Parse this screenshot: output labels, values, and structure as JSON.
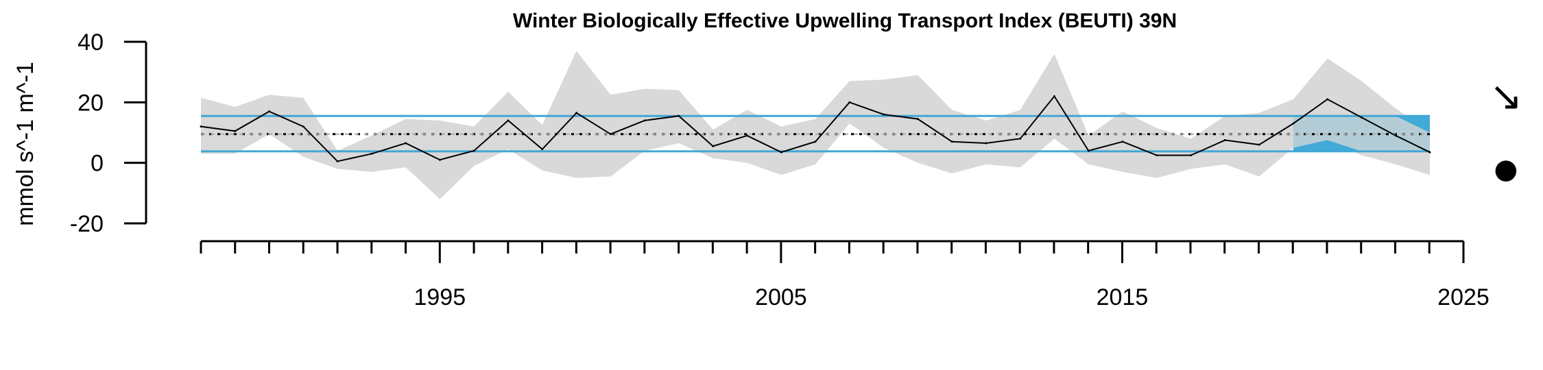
{
  "chart_data": {
    "type": "line",
    "title": "Winter Biologically Effective Upwelling Transport Index (BEUTI) 39N",
    "xlabel": "",
    "ylabel": "mmol s^-1 m^-1",
    "xlim": [
      1988,
      2025
    ],
    "ylim": [
      -20,
      40
    ],
    "x_ticks": [
      1995,
      2005,
      2015,
      2025
    ],
    "y_ticks": [
      -20,
      0,
      20,
      40
    ],
    "grid": false,
    "years": [
      1988,
      1989,
      1990,
      1991,
      1992,
      1993,
      1994,
      1995,
      1996,
      1997,
      1998,
      1999,
      2000,
      2001,
      2002,
      2003,
      2004,
      2005,
      2006,
      2007,
      2008,
      2009,
      2010,
      2011,
      2012,
      2013,
      2014,
      2015,
      2016,
      2017,
      2018,
      2019,
      2020,
      2021,
      2022,
      2023,
      2024
    ],
    "series": [
      {
        "role": "mean",
        "color": "#000000",
        "values": [
          12.0,
          10.5,
          17.0,
          12.0,
          0.5,
          3.0,
          6.5,
          1.0,
          4.0,
          14.0,
          4.5,
          16.5,
          9.5,
          14.0,
          15.5,
          5.5,
          9.0,
          3.5,
          7.0,
          20.0,
          16.0,
          14.5,
          7.0,
          6.5,
          8.0,
          22.0,
          4.0,
          7.0,
          2.5,
          2.5,
          7.5,
          6.0,
          13.0,
          21.0,
          15.0,
          9.0,
          3.5
        ]
      }
    ],
    "uncertainty_band": {
      "color": "#d9d9d9",
      "upper": [
        21.5,
        18.5,
        22.5,
        21.5,
        4.0,
        9.0,
        14.5,
        14.0,
        12.0,
        23.5,
        12.5,
        37.0,
        22.5,
        24.5,
        24.0,
        11.0,
        17.5,
        12.0,
        14.5,
        27.0,
        27.5,
        29.0,
        17.5,
        14.0,
        17.5,
        36.0,
        9.0,
        17.0,
        11.5,
        8.0,
        15.5,
        16.5,
        21.0,
        34.5,
        27.0,
        18.0,
        10.0
      ],
      "lower": [
        3.0,
        3.0,
        9.5,
        2.0,
        -2.0,
        -3.0,
        -1.5,
        -12.0,
        -1.0,
        4.5,
        -2.5,
        -5.0,
        -4.5,
        4.0,
        6.5,
        1.5,
        0.0,
        -4.0,
        -0.5,
        13.0,
        5.0,
        0.0,
        -3.5,
        -0.5,
        -1.5,
        8.0,
        -0.5,
        -3.0,
        -5.0,
        -2.0,
        -0.5,
        -4.5,
        5.0,
        7.5,
        2.5,
        -0.5,
        -4.0
      ]
    },
    "reference_lines": {
      "long_term_mean": 9.5,
      "upper_sd": 15.5,
      "lower_sd": 3.8,
      "sd_line_color": "#41a6d6",
      "mean_line_color": "#000000"
    },
    "recent_period": {
      "start": 2020,
      "end": 2024,
      "fill_color": "#41aad6",
      "overlay_color": "#b3ccd6"
    },
    "trend_symbol": "↘",
    "mean_symbol": "●"
  }
}
